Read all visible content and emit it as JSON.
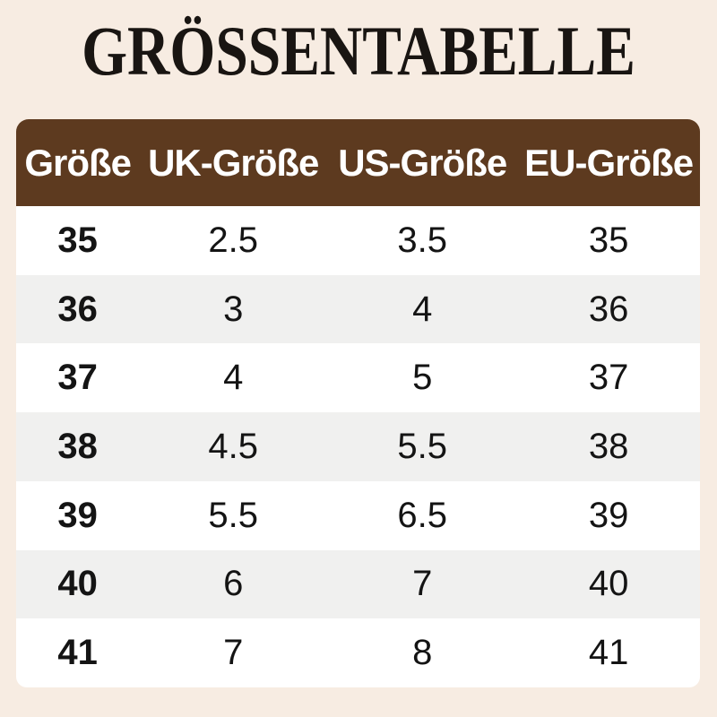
{
  "title": "GRÖSSENTABELLE",
  "colors": {
    "background": "#f7ece2",
    "header_bg": "#5d3a1f",
    "header_text": "#ffffff",
    "row_white": "#ffffff",
    "row_alt": "#f0f0ef",
    "text": "#141414",
    "title_text": "#191512"
  },
  "table": {
    "headers": [
      "Größe",
      "UK-Größe",
      "US-Größe",
      "EU-Größe"
    ],
    "rows": [
      [
        "35",
        "2.5",
        "3.5",
        "35"
      ],
      [
        "36",
        "3",
        "4",
        "36"
      ],
      [
        "37",
        "4",
        "5",
        "37"
      ],
      [
        "38",
        "4.5",
        "5.5",
        "38"
      ],
      [
        "39",
        "5.5",
        "6.5",
        "39"
      ],
      [
        "40",
        "6",
        "7",
        "40"
      ],
      [
        "41",
        "7",
        "8",
        "41"
      ]
    ]
  },
  "chart_data": {
    "type": "table",
    "title": "GRÖSSENTABELLE",
    "columns": [
      "Größe",
      "UK-Größe",
      "US-Größe",
      "EU-Größe"
    ],
    "rows": [
      {
        "groesse": 35,
        "uk": 2.5,
        "us": 3.5,
        "eu": 35
      },
      {
        "groesse": 36,
        "uk": 3,
        "us": 4,
        "eu": 36
      },
      {
        "groesse": 37,
        "uk": 4,
        "us": 5,
        "eu": 37
      },
      {
        "groesse": 38,
        "uk": 4.5,
        "us": 5.5,
        "eu": 38
      },
      {
        "groesse": 39,
        "uk": 5.5,
        "us": 6.5,
        "eu": 39
      },
      {
        "groesse": 40,
        "uk": 6,
        "us": 7,
        "eu": 40
      },
      {
        "groesse": 41,
        "uk": 7,
        "us": 8,
        "eu": 41
      }
    ],
    "layout": "header row brown with white bold text, data rows alternate white and light gray, all cells center-aligned"
  }
}
